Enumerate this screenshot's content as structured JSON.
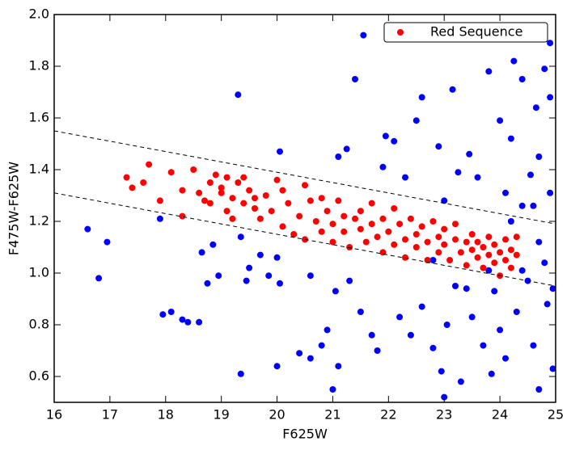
{
  "chart_data": {
    "type": "scatter",
    "x_label": "F625W",
    "y_label": "F475W-F625W",
    "xlim": [
      16,
      25
    ],
    "ylim": [
      0.5,
      2.0
    ],
    "xticks": [
      16,
      17,
      18,
      19,
      20,
      21,
      22,
      23,
      24,
      25
    ],
    "yticks": [
      0.6,
      0.8,
      {
        "value": 1.0,
        "label": "1.0"
      },
      1.2,
      1.4,
      1.6,
      1.8,
      {
        "value": 2.0,
        "label": "2.0"
      }
    ],
    "legend": "upper right",
    "lines": [
      {
        "x": [
          16,
          25
        ],
        "y": [
          1.55,
          1.19
        ]
      },
      {
        "x": [
          16,
          25
        ],
        "y": [
          1.31,
          0.95
        ]
      }
    ],
    "series": [
      {
        "color": "#0000ff",
        "x": [
          16.6,
          16.8,
          16.95,
          17.9,
          17.95,
          18.1,
          18.3,
          18.4,
          18.6,
          18.65,
          18.75,
          18.85,
          18.95,
          19.3,
          19.35,
          19.35,
          19.45,
          19.5,
          19.7,
          19.85,
          20.0,
          20.05,
          20.05,
          20.0,
          20.4,
          20.6,
          20.6,
          20.8,
          20.9,
          21.0,
          21.05,
          21.1,
          21.1,
          21.25,
          21.3,
          21.4,
          21.5,
          21.55,
          21.7,
          21.8,
          21.9,
          21.95,
          22.1,
          22.2,
          22.3,
          22.4,
          22.5,
          22.6,
          22.6,
          22.8,
          22.9,
          22.95,
          23.0,
          23.05,
          23.15,
          23.25,
          23.3,
          23.4,
          23.45,
          23.6,
          23.7,
          23.8,
          23.85,
          23.9,
          24.0,
          24.1,
          24.1,
          24.2,
          24.25,
          24.3,
          24.4,
          24.4,
          24.5,
          24.55,
          24.6,
          24.65,
          24.7,
          24.7,
          24.8,
          24.8,
          24.85,
          24.9,
          24.9,
          24.95,
          24.95,
          24.9,
          24.6,
          24.4,
          24.2,
          23.8,
          23.5,
          23.0,
          22.8,
          23.2,
          24.0,
          24.7
        ],
        "values": [
          1.17,
          0.98,
          1.12,
          1.21,
          0.84,
          0.85,
          0.82,
          0.81,
          0.81,
          1.08,
          0.96,
          1.11,
          0.99,
          1.69,
          0.61,
          1.14,
          0.97,
          1.02,
          1.07,
          0.99,
          1.06,
          1.47,
          0.96,
          0.64,
          0.69,
          0.67,
          0.99,
          0.72,
          0.78,
          0.55,
          0.93,
          1.45,
          0.64,
          1.48,
          0.97,
          1.75,
          0.85,
          1.92,
          0.76,
          0.7,
          1.41,
          1.53,
          1.51,
          0.83,
          1.37,
          0.76,
          1.59,
          1.68,
          0.87,
          0.71,
          1.49,
          0.62,
          0.52,
          0.8,
          1.71,
          1.39,
          0.58,
          0.94,
          1.46,
          1.37,
          0.72,
          1.78,
          0.61,
          0.93,
          1.59,
          1.31,
          0.67,
          1.52,
          1.82,
          0.85,
          1.26,
          1.75,
          0.97,
          1.38,
          0.72,
          1.64,
          1.12,
          0.55,
          1.79,
          1.04,
          0.88,
          1.68,
          1.31,
          0.94,
          0.63,
          1.89,
          1.26,
          1.01,
          1.2,
          1.01,
          0.83,
          1.28,
          1.05,
          0.95,
          0.78,
          1.45
        ]
      },
      {
        "name": "Red Sequence",
        "color": "#ff0000",
        "x": [
          17.3,
          17.4,
          17.6,
          17.7,
          17.9,
          18.1,
          18.3,
          18.3,
          18.5,
          18.6,
          18.7,
          18.8,
          18.8,
          18.9,
          19.0,
          19.0,
          19.1,
          19.1,
          19.2,
          19.2,
          19.3,
          19.4,
          19.4,
          19.5,
          19.6,
          19.6,
          19.7,
          19.8,
          19.9,
          20.0,
          20.1,
          20.1,
          20.2,
          20.3,
          20.4,
          20.5,
          20.5,
          20.6,
          20.7,
          20.8,
          20.8,
          20.9,
          21.0,
          21.0,
          21.1,
          21.2,
          21.2,
          21.3,
          21.4,
          21.5,
          21.5,
          21.6,
          21.7,
          21.7,
          21.8,
          21.9,
          21.9,
          22.0,
          22.1,
          22.1,
          22.2,
          22.3,
          22.3,
          22.4,
          22.5,
          22.5,
          22.6,
          22.7,
          22.7,
          22.8,
          22.9,
          22.9,
          23.0,
          23.0,
          23.1,
          23.2,
          23.2,
          23.3,
          23.4,
          23.4,
          23.5,
          23.5,
          23.6,
          23.6,
          23.7,
          23.7,
          23.8,
          23.8,
          23.9,
          23.9,
          24.0,
          24.0,
          24.1,
          24.1,
          24.2,
          24.2,
          24.3,
          24.3
        ],
        "values": [
          1.37,
          1.33,
          1.35,
          1.42,
          1.28,
          1.39,
          1.32,
          1.22,
          1.4,
          1.31,
          1.28,
          1.35,
          1.27,
          1.38,
          1.33,
          1.31,
          1.37,
          1.24,
          1.29,
          1.21,
          1.35,
          1.37,
          1.27,
          1.32,
          1.25,
          1.29,
          1.21,
          1.3,
          1.24,
          1.36,
          1.32,
          1.18,
          1.27,
          1.15,
          1.22,
          1.34,
          1.13,
          1.28,
          1.2,
          1.29,
          1.16,
          1.24,
          1.12,
          1.19,
          1.28,
          1.22,
          1.16,
          1.1,
          1.21,
          1.17,
          1.24,
          1.12,
          1.19,
          1.27,
          1.14,
          1.08,
          1.21,
          1.16,
          1.11,
          1.25,
          1.19,
          1.13,
          1.06,
          1.21,
          1.15,
          1.1,
          1.18,
          1.12,
          1.05,
          1.2,
          1.14,
          1.08,
          1.17,
          1.11,
          1.05,
          1.13,
          1.19,
          1.08,
          1.12,
          1.03,
          1.15,
          1.09,
          1.06,
          1.12,
          1.02,
          1.1,
          1.14,
          1.07,
          1.04,
          1.11,
          1.08,
          0.99,
          1.13,
          1.05,
          1.09,
          1.02,
          1.14,
          1.07
        ]
      }
    ]
  }
}
